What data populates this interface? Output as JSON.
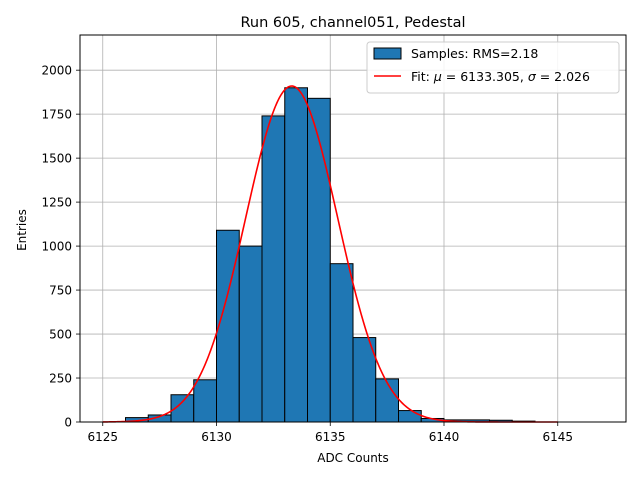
{
  "chart_data": {
    "type": "bar",
    "title": "Run 605, channel051, Pedestal",
    "xlabel": "ADC Counts",
    "ylabel": "Entries",
    "xlim": [
      6124,
      6148
    ],
    "ylim": [
      0,
      2200
    ],
    "xticks": [
      6125,
      6130,
      6135,
      6140,
      6145
    ],
    "yticks": [
      0,
      250,
      500,
      750,
      1000,
      1250,
      1500,
      1750,
      2000
    ],
    "grid": true,
    "legend_position": "top-right",
    "colors": {
      "bars": "#1f77b4",
      "fit": "#ff0000"
    },
    "bins": [
      {
        "left": 6126,
        "right": 6127,
        "count": 25
      },
      {
        "left": 6127,
        "right": 6128,
        "count": 40
      },
      {
        "left": 6128,
        "right": 6129,
        "count": 155
      },
      {
        "left": 6129,
        "right": 6130,
        "count": 240
      },
      {
        "left": 6130,
        "right": 6131,
        "count": 1090
      },
      {
        "left": 6131,
        "right": 6132,
        "count": 1000
      },
      {
        "left": 6132,
        "right": 6133,
        "count": 1740
      },
      {
        "left": 6133,
        "right": 6134,
        "count": 1900
      },
      {
        "left": 6134,
        "right": 6135,
        "count": 1840
      },
      {
        "left": 6135,
        "right": 6136,
        "count": 900
      },
      {
        "left": 6136,
        "right": 6137,
        "count": 480
      },
      {
        "left": 6137,
        "right": 6138,
        "count": 245
      },
      {
        "left": 6138,
        "right": 6139,
        "count": 65
      },
      {
        "left": 6139,
        "right": 6140,
        "count": 20
      },
      {
        "left": 6140,
        "right": 6142,
        "count": 12
      },
      {
        "left": 6142,
        "right": 6143,
        "count": 10
      },
      {
        "left": 6143,
        "right": 6144,
        "count": 5
      }
    ],
    "fit": {
      "mu": 6133.305,
      "sigma": 2.026,
      "amplitude": 1910,
      "x_range": [
        6125,
        6145
      ]
    },
    "legend": [
      {
        "label": "Samples: RMS=2.18",
        "kind": "patch"
      },
      {
        "label_prefix": "Fit: ",
        "mu_symbol": "μ",
        "mu_text": " = 6133.305, ",
        "sigma_symbol": "σ",
        "sigma_text": " = 2.026",
        "kind": "line"
      }
    ]
  }
}
